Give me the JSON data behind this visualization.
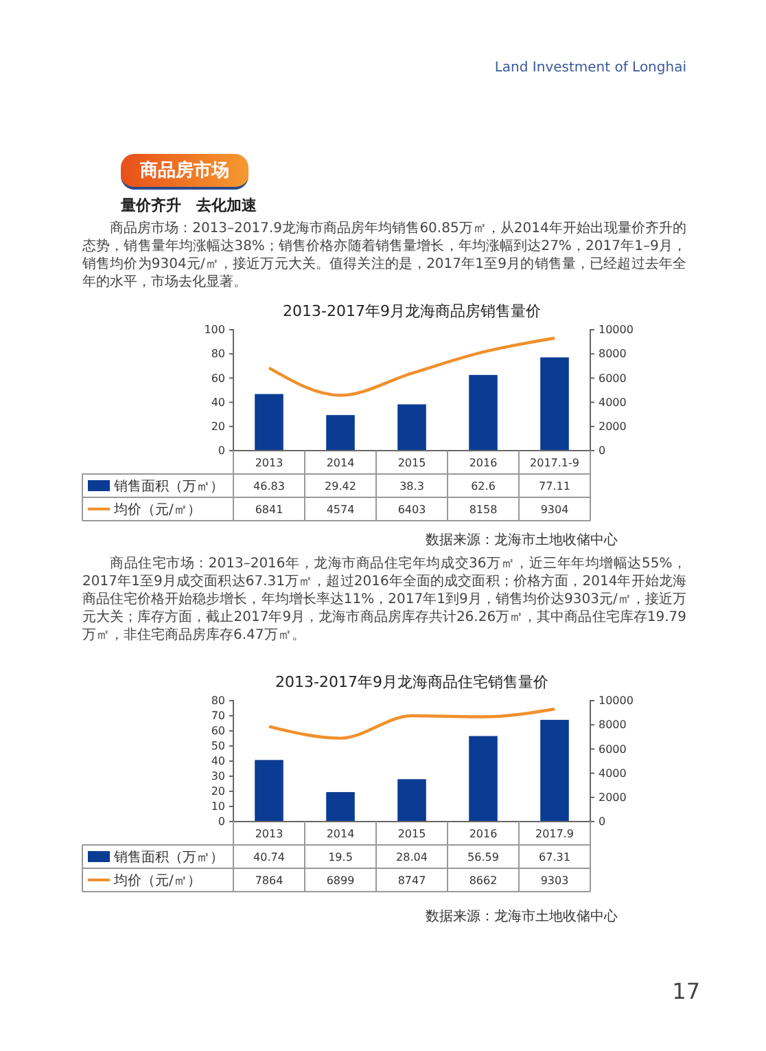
{
  "chart_data": [
    {
      "type": "bar",
      "title": "2013-2017年9月龙海商品房销售量价",
      "categories": [
        "2013",
        "2014",
        "2015",
        "2016",
        "2017.1-9"
      ],
      "series": [
        {
          "name": "销售面积（万㎡）",
          "color": "#0b3c94",
          "values": [
            46.83,
            29.42,
            38.3,
            62.6,
            77.11
          ]
        },
        {
          "name": "均价（元/㎡）",
          "type": "line",
          "axis": "y2",
          "color": "#f0902c",
          "values": [
            6841,
            4574,
            6403,
            8158,
            9304
          ]
        }
      ],
      "ylim": [
        0,
        100
      ],
      "yticks": [
        0,
        20,
        40,
        60,
        80,
        100
      ],
      "y2lim": [
        0,
        10000
      ],
      "y2ticks": [
        0,
        2000,
        4000,
        6000,
        8000,
        10000
      ],
      "data_labels": true,
      "legend": "bottom",
      "grid": false,
      "annotations": [
        "Land Investment of Longhai",
        "商品房市场",
        "量价齐升　去化加速",
        "商品房市场：2013–2017.9龙海市商品房年均销售60.85万㎡，从2014年开始出现量价齐升的态势，销售量年均涨幅达38%；销售价格亦随着销售量增长，年均涨幅到达27%，2017年1–9月，销售均价为9304元/㎡，接近万元大关。值得关注的是，2017年1至9月的销售量，已经超过去年全年的水平，市场去化显著。",
        "数据来源：龙海市土地收储中心"
      ]
    },
    {
      "type": "bar",
      "title": "2013-2017年9月龙海商品住宅销售量价",
      "categories": [
        "2013",
        "2014",
        "2015",
        "2016",
        "2017.9"
      ],
      "series": [
        {
          "name": "销售面积（万㎡）",
          "color": "#0b3c94",
          "values": [
            40.74,
            19.5,
            28.04,
            56.59,
            67.31
          ]
        },
        {
          "name": "均价（元/㎡）",
          "type": "line",
          "axis": "y2",
          "color": "#f0902c",
          "values": [
            7864,
            6899,
            8747,
            8662,
            9303
          ]
        }
      ],
      "ylim": [
        0,
        80
      ],
      "yticks": [
        0,
        10,
        20,
        30,
        40,
        50,
        60,
        70,
        80
      ],
      "y2lim": [
        0,
        10000
      ],
      "y2ticks": [
        0,
        2000,
        4000,
        6000,
        8000,
        10000
      ],
      "data_labels": true,
      "legend": "bottom",
      "grid": false,
      "annotations": [
        "商品住宅市场：2013–2016年，龙海市商品住宅年均成交36万㎡，近三年年均增幅达55%，2017年1至9月成交面积达67.31万㎡，超过2016年全面的成交面积；价格方面，2014年开始龙海商品住宅价格开始稳步增长，年均增长率达11%，2017年1到9月，销售均价达9303元/㎡，接近万元大关；库存方面，截止2017年9月，龙海市商品房库存共计26.26万㎡，其中商品住宅库存19.79万㎡，非住宅商品房库存6.47万㎡。",
        "数据来源：龙海市土地收储中心",
        "17"
      ]
    }
  ]
}
